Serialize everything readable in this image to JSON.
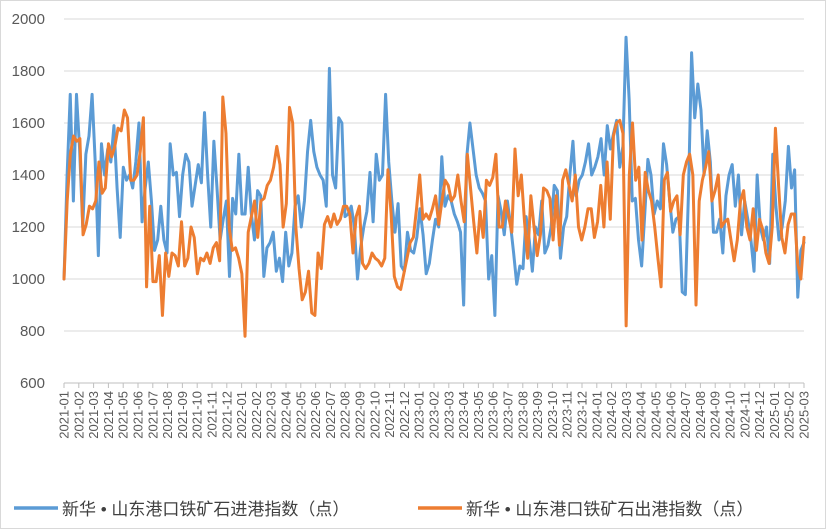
{
  "chart_data": {
    "type": "line",
    "title": "",
    "xlabel": "",
    "ylabel": "",
    "ylim": [
      600,
      2000
    ],
    "yticks": [
      600,
      800,
      1000,
      1200,
      1400,
      1600,
      1800,
      2000
    ],
    "grid": true,
    "legend_position": "bottom",
    "x_tick_labels": [
      "2021-01",
      "2021-02",
      "2021-03",
      "2021-04",
      "2021-05",
      "2021-06",
      "2021-07",
      "2021-08",
      "2021-09",
      "2021-10",
      "2021-11",
      "2021-12",
      "2022-01",
      "2022-02",
      "2022-03",
      "2022-04",
      "2022-05",
      "2022-06",
      "2022-07",
      "2022-08",
      "2022-09",
      "2022-10",
      "2022-11",
      "2022-12",
      "2023-01",
      "2023-02",
      "2023-03",
      "2023-04",
      "2023-05",
      "2023-06",
      "2023-07",
      "2023-08",
      "2023-09",
      "2023-10",
      "2023-11",
      "2023-12",
      "2024-01",
      "2024-02",
      "2024-03",
      "2024-04",
      "2024-05",
      "2024-06",
      "2024-07",
      "2024-08",
      "2024-09",
      "2024-10",
      "2024-11",
      "2024-12",
      "2025-01",
      "2025-02",
      "2025-03"
    ],
    "series": [
      {
        "name": "新华 • 山东港口铁矿石进港指数（点）",
        "color": "#5b9bd5",
        "values": [
          1000,
          1400,
          1710,
          1300,
          1710,
          1500,
          1200,
          1480,
          1550,
          1710,
          1450,
          1090,
          1520,
          1400,
          1500,
          1450,
          1590,
          1350,
          1160,
          1430,
          1380,
          1400,
          1350,
          1450,
          1600,
          1220,
          1350,
          1450,
          1300,
          1110,
          1150,
          1280,
          1150,
          1100,
          1520,
          1400,
          1410,
          1240,
          1400,
          1480,
          1450,
          1280,
          1360,
          1440,
          1370,
          1640,
          1400,
          1200,
          1530,
          1350,
          1150,
          1230,
          1300,
          1010,
          1310,
          1250,
          1480,
          1250,
          1250,
          1430,
          1250,
          1150,
          1340,
          1320,
          1010,
          1120,
          1140,
          1180,
          1030,
          1080,
          990,
          1180,
          1050,
          1100,
          1280,
          1320,
          1200,
          1300,
          1490,
          1610,
          1490,
          1430,
          1400,
          1380,
          1280,
          1810,
          1400,
          1350,
          1620,
          1600,
          1240,
          1250,
          1280,
          1200,
          1000,
          1120,
          1200,
          1260,
          1410,
          1220,
          1480,
          1380,
          1400,
          1710,
          1450,
          1300,
          1180,
          1290,
          1050,
          1030,
          1180,
          1110,
          1100,
          1160,
          1270,
          1170,
          1020,
          1060,
          1150,
          1230,
          1200,
          1470,
          1280,
          1320,
          1300,
          1250,
          1220,
          1180,
          900,
          1470,
          1600,
          1500,
          1400,
          1350,
          1330,
          1300,
          1000,
          1090,
          860,
          1320,
          1260,
          1170,
          1300,
          1210,
          1100,
          980,
          1050,
          1040,
          1240,
          1150,
          1030,
          1200,
          1170,
          1300,
          1100,
          1130,
          1200,
          1360,
          1340,
          1080,
          1200,
          1240,
          1400,
          1530,
          1320,
          1380,
          1400,
          1450,
          1520,
          1400,
          1430,
          1470,
          1540,
          1400,
          1590,
          1500,
          1560,
          1610,
          1430,
          1510,
          1930,
          1690,
          1300,
          1310,
          1150,
          1050,
          1250,
          1460,
          1400,
          1250,
          1300,
          1270,
          1520,
          1440,
          1300,
          1180,
          1230,
          1240,
          950,
          940,
          1330,
          1870,
          1620,
          1750,
          1650,
          1400,
          1570,
          1450,
          1180,
          1180,
          1230,
          1100,
          1320,
          1400,
          1440,
          1280,
          1400,
          1170,
          1300,
          1230,
          1150,
          1030,
          1400,
          1200,
          1150,
          1200,
          1060,
          1480,
          1280,
          1150,
          1200,
          1300,
          1510,
          1350,
          1420,
          930,
          1110,
          1140
        ]
      },
      {
        "name": "新华 • 山东港口铁矿石出港指数（点）",
        "color": "#ed7d31",
        "values": [
          1000,
          1300,
          1480,
          1550,
          1530,
          1540,
          1170,
          1210,
          1280,
          1270,
          1300,
          1450,
          1330,
          1350,
          1520,
          1470,
          1510,
          1580,
          1570,
          1650,
          1620,
          1380,
          1380,
          1400,
          1490,
          1620,
          970,
          1280,
          990,
          990,
          1090,
          860,
          1100,
          1010,
          1100,
          1090,
          1050,
          1220,
          1050,
          1080,
          1200,
          1160,
          1020,
          1080,
          1070,
          1100,
          1060,
          1120,
          1140,
          1070,
          1700,
          1560,
          1200,
          1110,
          1120,
          1080,
          1020,
          780,
          1180,
          1240,
          1300,
          1160,
          1300,
          1310,
          1360,
          1380,
          1430,
          1510,
          1440,
          1200,
          1290,
          1660,
          1600,
          1200,
          1040,
          920,
          950,
          1030,
          870,
          860,
          1100,
          1040,
          1210,
          1240,
          1200,
          1250,
          1210,
          1230,
          1280,
          1280,
          1250,
          1100,
          1240,
          1280,
          1060,
          1040,
          1060,
          1100,
          1080,
          1070,
          1050,
          1080,
          1420,
          1250,
          1010,
          970,
          960,
          1020,
          1080,
          1140,
          1160,
          1270,
          1400,
          1230,
          1250,
          1230,
          1270,
          1320,
          1210,
          1300,
          1380,
          1360,
          1300,
          1320,
          1400,
          1300,
          1220,
          1480,
          1350,
          1220,
          1100,
          1260,
          1160,
          1380,
          1360,
          1390,
          1480,
          1200,
          1200,
          1300,
          1240,
          1180,
          1500,
          1320,
          1400,
          1220,
          1080,
          1320,
          1200,
          1090,
          1170,
          1350,
          1340,
          1310,
          1150,
          1320,
          1130,
          1380,
          1420,
          1360,
          1300,
          1400,
          1200,
          1150,
          1200,
          1270,
          1270,
          1160,
          1220,
          1360,
          1200,
          1450,
          1230,
          1550,
          1600,
          1610,
          1560,
          820,
          1400,
          1600,
          1380,
          1430,
          1150,
          1410,
          1340,
          1300,
          1200,
          1080,
          970,
          1380,
          1410,
          1260,
          1300,
          1320,
          1170,
          1400,
          1450,
          1480,
          1400,
          900,
          1300,
          1380,
          1430,
          1490,
          1300,
          1340,
          1400,
          1200,
          1220,
          1230,
          1150,
          1070,
          1150,
          1300,
          1340,
          1200,
          1150,
          1270,
          1110,
          1230,
          1190,
          1100,
          1060,
          1200,
          1580,
          1360,
          1160,
          1100,
          1210,
          1250,
          1250,
          1060,
          1000,
          1160
        ]
      }
    ]
  }
}
